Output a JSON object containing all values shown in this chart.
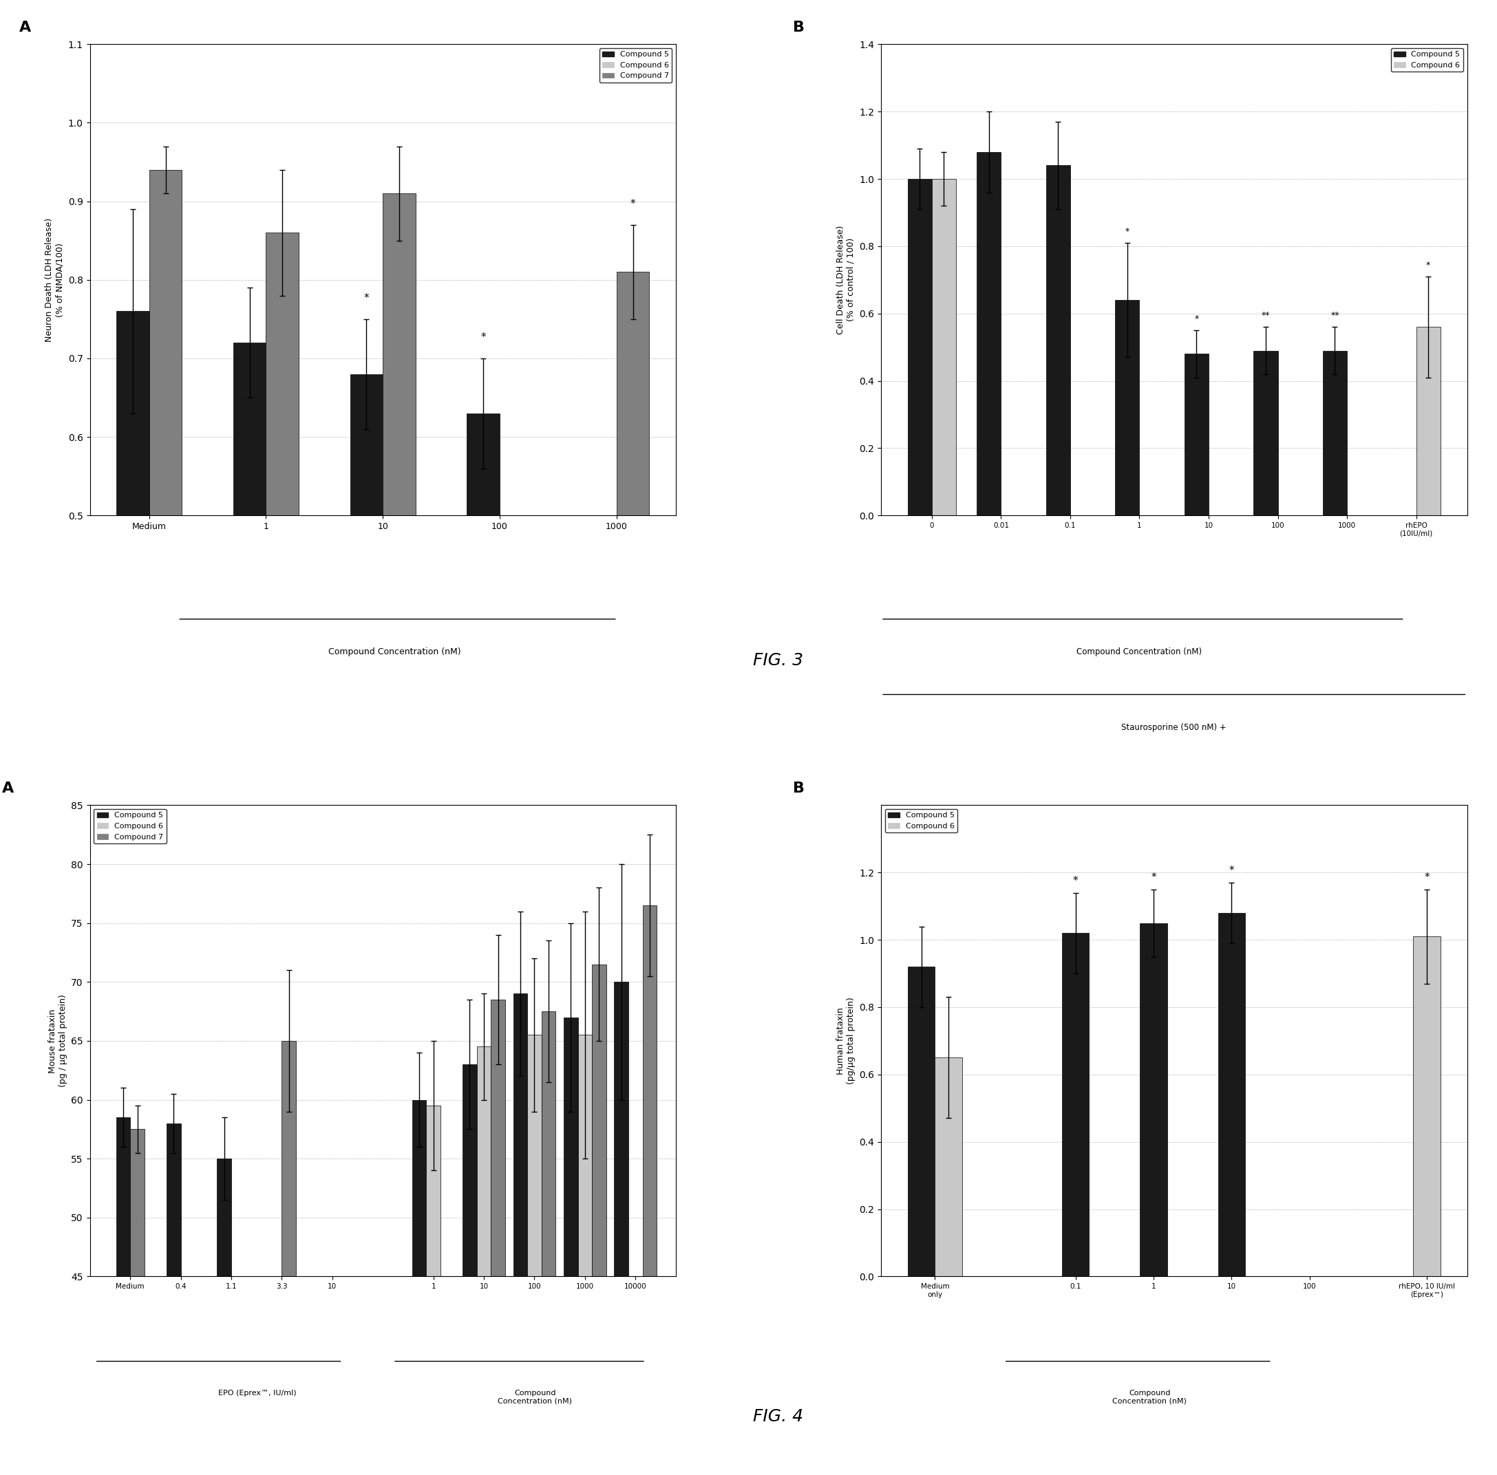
{
  "fig3A": {
    "title": "A",
    "ylabel": "Neuron Death (LDH Release)\n(% of NMDA/100)",
    "xlabel": "Compound Concentration (nM)",
    "ylim": [
      0.5,
      1.1
    ],
    "yticks": [
      0.5,
      0.6,
      0.7,
      0.8,
      0.9,
      1.0,
      1.1
    ],
    "groups": [
      "Medium",
      "1",
      "10",
      "100",
      "1000"
    ],
    "compound5": [
      0.76,
      0.72,
      0.68,
      0.63,
      null
    ],
    "compound6": [
      null,
      null,
      null,
      null,
      null
    ],
    "compound7": [
      0.94,
      0.86,
      0.91,
      null,
      0.81
    ],
    "compound5_err": [
      0.13,
      0.07,
      0.07,
      0.07,
      null
    ],
    "compound7_err": [
      0.03,
      0.08,
      0.06,
      null,
      0.06
    ],
    "compound5_star": [
      false,
      false,
      true,
      true,
      true
    ],
    "compound7_star": [
      false,
      false,
      false,
      false,
      true
    ],
    "medium_compound5": 0.76,
    "medium_compound5_err": 0.13
  },
  "fig3B": {
    "title": "B",
    "ylabel": "Cell Death (LDH Release)\n(% of control / 100)",
    "xlabel": "Compound Concentration (nM)",
    "xlabel2": "Staurosporine (500 nM) +",
    "ylim": [
      0.0,
      1.4
    ],
    "yticks": [
      0.0,
      0.2,
      0.4,
      0.6,
      0.8,
      1.0,
      1.2,
      1.4
    ],
    "groups": [
      "0",
      "0.01",
      "0.1",
      "1",
      "10",
      "100",
      "1000",
      "rhEPO\n(10IU/ml)"
    ],
    "compound5": [
      1.0,
      1.08,
      1.04,
      0.64,
      0.48,
      0.49,
      0.49,
      null
    ],
    "compound6": [
      1.0,
      null,
      null,
      null,
      null,
      null,
      null,
      0.56
    ],
    "compound5_err": [
      0.09,
      0.12,
      0.13,
      0.17,
      0.07,
      0.07,
      0.07,
      null
    ],
    "compound6_err": [
      0.08,
      null,
      null,
      null,
      null,
      null,
      null,
      0.15
    ],
    "compound5_star": [
      false,
      false,
      false,
      true,
      true,
      true,
      true,
      false
    ],
    "compound6_star": [
      false,
      false,
      false,
      false,
      false,
      false,
      false,
      true
    ]
  },
  "fig4A": {
    "title": "A",
    "ylabel": "Mouse frataxin\n(pg / μg total protein)",
    "xlabel_epo": "EPO (Eprex™, IU/ml)",
    "xlabel_conc": "Compound\nConcentration (nM)",
    "ylim": [
      45,
      85
    ],
    "yticks": [
      45,
      50,
      55,
      60,
      65,
      70,
      75,
      80,
      85
    ],
    "epo_groups": [
      "Medium",
      "0.4",
      "1.1",
      "3.3",
      "10"
    ],
    "conc_groups": [
      "1",
      "10",
      "100",
      "1000",
      "10000"
    ],
    "epo_compound5": [
      58.5,
      58.0,
      55.0,
      null,
      null
    ],
    "epo_compound6": [
      null,
      null,
      null,
      null,
      null
    ],
    "epo_compound7": [
      57.5,
      null,
      null,
      65.0,
      null
    ],
    "epo_compound5_err": [
      2.5,
      2.5,
      3.5,
      null,
      null
    ],
    "epo_compound7_err": [
      2.0,
      null,
      null,
      6.0,
      null
    ],
    "conc_compound5": [
      60.0,
      63.0,
      69.0,
      67.0,
      70.0
    ],
    "conc_compound6": [
      59.5,
      64.5,
      65.5,
      65.5,
      null
    ],
    "conc_compound7": [
      null,
      68.5,
      67.5,
      71.5,
      76.5
    ],
    "conc_compound5_err": [
      4.0,
      5.5,
      7.0,
      8.0,
      10.0
    ],
    "conc_compound6_err": [
      5.5,
      4.5,
      6.5,
      10.5,
      null
    ],
    "conc_compound7_err": [
      null,
      5.5,
      6.0,
      6.5,
      6.0
    ]
  },
  "fig4B": {
    "title": "B",
    "ylabel": "Human frataxin\n(pg/μg total protein)",
    "xlabel": "Compound\nConcentration (nM)",
    "xlabel2": "rhEPO, 10 IU/ml\n(Eprex™)",
    "ylim": [
      0.0,
      1.4
    ],
    "yticks": [
      0.0,
      0.2,
      0.4,
      0.6,
      0.8,
      1.0,
      1.2
    ],
    "groups": [
      "Medium\nonly",
      "0.1",
      "1",
      "10",
      "100",
      "rhEPO, 10 IU/ml\n(Eprex™)"
    ],
    "compound5": [
      null,
      1.02,
      1.05,
      1.08,
      null
    ],
    "compound6": [
      0.65,
      null,
      null,
      null,
      1.01
    ],
    "compound5_err": [
      null,
      0.12,
      0.1,
      0.09,
      null
    ],
    "compound6_err": [
      0.18,
      null,
      null,
      null,
      0.14
    ],
    "medium_compound5": null,
    "medium_bar": 0.92,
    "medium_bar_err": 0.12,
    "compound5_star": [
      false,
      true,
      true,
      true,
      false
    ],
    "compound6_star": [
      false,
      false,
      false,
      false,
      true
    ]
  },
  "colors": {
    "compound5": "#1a1a1a",
    "compound6": "#c8c8c8",
    "compound7": "#808080",
    "background": "#ffffff"
  },
  "fig3_caption": "FIG. 3",
  "fig4_caption": "FIG. 4"
}
